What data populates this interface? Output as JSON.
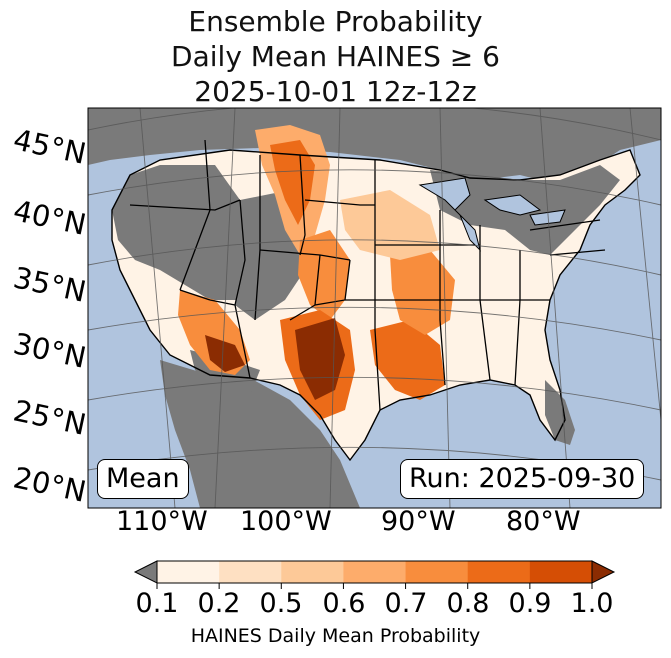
{
  "title": {
    "line1": "Ensemble Probability",
    "line2": "Daily Mean HAINES ≥ 6",
    "line3": "2025-10-01 12z-12z"
  },
  "map": {
    "mean_label": "Mean",
    "run_label": "Run: 2025-09-30",
    "lat_labels": [
      "45°N",
      "40°N",
      "35°N",
      "30°N",
      "25°N",
      "20°N"
    ],
    "lon_labels": [
      "110°W",
      "100°W",
      "90°W",
      "80°W"
    ],
    "colors": {
      "ocean": "#b0c4de",
      "land_missing": "#7a7a7a",
      "prob_colors": [
        "#fff3e6",
        "#fee0c2",
        "#fdc998",
        "#fdac6b",
        "#f88d3d",
        "#ec6b18",
        "#d54e05",
        "#8b2c02"
      ]
    }
  },
  "colorbar": {
    "ticks": [
      "0.1",
      "0.2",
      "0.5",
      "0.6",
      "0.7",
      "0.8",
      "0.9",
      "1.0"
    ],
    "label": "HAINES Daily Mean Probability",
    "colors": [
      "#fff3e6",
      "#fee0c2",
      "#fdc998",
      "#fdac6b",
      "#f88d3d",
      "#ec6b18",
      "#d54e05"
    ],
    "under_color": "#7a7a7a",
    "over_color": "#8b2c02"
  }
}
